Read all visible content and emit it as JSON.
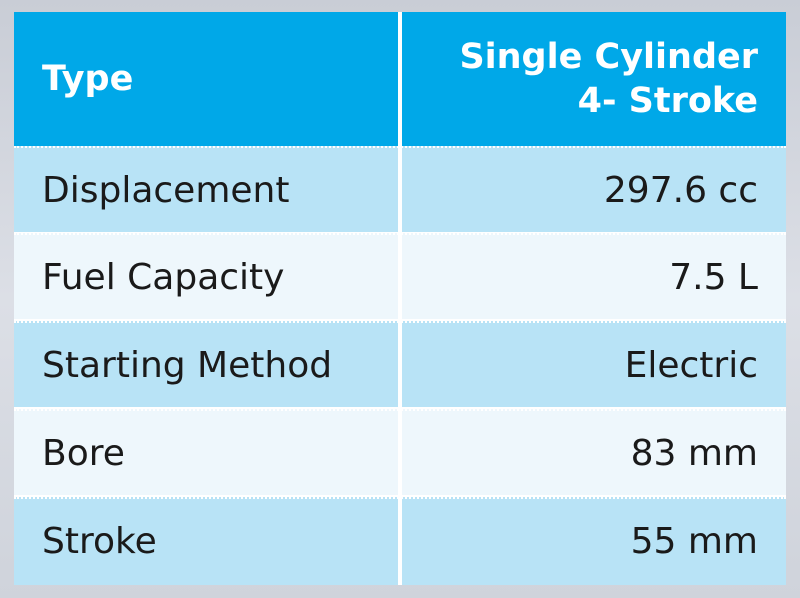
{
  "header": {
    "label": "Type",
    "value_line1": "Single Cylinder",
    "value_line2": "4- Stroke"
  },
  "rows": [
    {
      "label": "Displacement",
      "value": "297.6 cc"
    },
    {
      "label": "Fuel Capacity",
      "value": "7.5 L"
    },
    {
      "label": "Starting Method",
      "value": "Electric"
    },
    {
      "label": "Bore",
      "value": "83 mm"
    },
    {
      "label": "Stroke",
      "value": "55 mm"
    }
  ],
  "colors": {
    "header_bg": "#00a8e8",
    "row_blue": "#b8e3f6",
    "row_light": "#eef7fc",
    "text": "#1a1a1a"
  }
}
